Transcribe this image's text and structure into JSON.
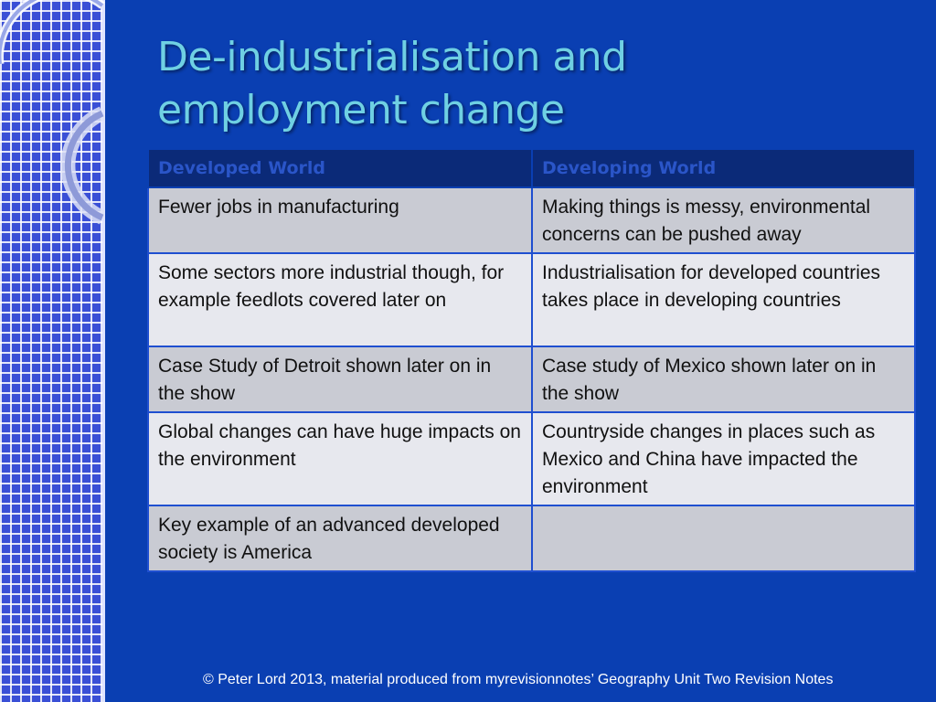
{
  "slide": {
    "title_line1": "De-industrialisation and",
    "title_line2": "employment change",
    "table": {
      "headers": [
        "Developed World",
        "Developing World"
      ],
      "rows": [
        [
          "Fewer jobs in manufacturing",
          "Making things is messy, environmental concerns can be pushed away"
        ],
        [
          "Some sectors more industrial though, for example feedlots covered later on",
          "Industrialisation for developed countries takes place in developing countries"
        ],
        [
          "Case Study of Detroit shown later on in the show",
          "Case study of Mexico shown later on in the show"
        ],
        [
          "Global changes can have huge impacts on the environment",
          "Countryside changes in places such as Mexico and China have impacted the environment"
        ],
        [
          "Key example of an advanced developed society is America",
          ""
        ]
      ]
    },
    "footer": "© Peter Lord 2013, material produced from myrevisionnotes’ Geography Unit Two Revision Notes"
  },
  "colors": {
    "background": "#0a3fb2",
    "title": "#6fd0e3",
    "header_bg": "#0b2a78",
    "header_text": "#2a55c8",
    "row_dark": "#c9cbd3",
    "row_light": "#e7e8ee"
  }
}
